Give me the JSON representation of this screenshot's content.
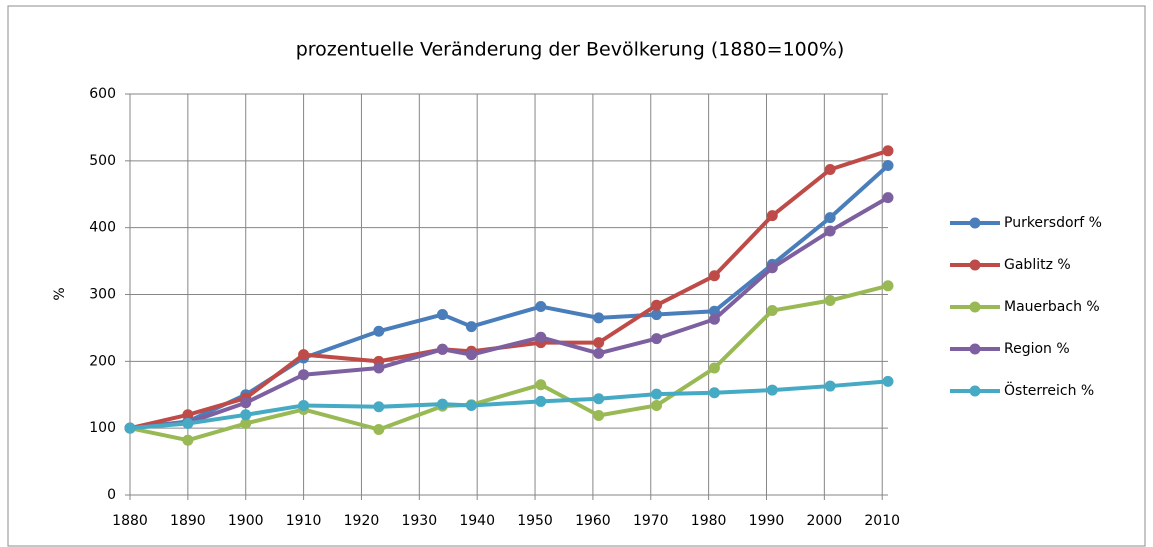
{
  "chart_data": {
    "type": "line",
    "title": "prozentuelle Veränderung der Bevölkerung (1880=100%)",
    "y_label": "%",
    "x": [
      1880,
      1890,
      1900,
      1910,
      1923,
      1934,
      1939,
      1951,
      1961,
      1971,
      1981,
      1991,
      2001,
      2011
    ],
    "series": [
      {
        "name": "Purkersdorf %",
        "color": "#4a7ebb",
        "values": [
          100,
          110,
          150,
          205,
          245,
          270,
          252,
          282,
          265,
          270,
          275,
          345,
          415,
          493
        ]
      },
      {
        "name": "Gablitz %",
        "color": "#be4b48",
        "values": [
          100,
          120,
          145,
          210,
          200,
          218,
          215,
          228,
          228,
          284,
          328,
          418,
          487,
          515
        ]
      },
      {
        "name": "Mauerbach %",
        "color": "#98b954",
        "values": [
          100,
          82,
          107,
          128,
          98,
          133,
          135,
          165,
          119,
          134,
          190,
          276,
          291,
          313
        ]
      },
      {
        "name": "Region %",
        "color": "#7d60a0",
        "values": [
          100,
          108,
          138,
          180,
          190,
          218,
          210,
          236,
          212,
          234,
          263,
          340,
          395,
          445
        ]
      },
      {
        "name": "Österreich %",
        "color": "#46aac5",
        "values": [
          100,
          107,
          120,
          134,
          132,
          136,
          134,
          140,
          144,
          151,
          153,
          157,
          163,
          170
        ]
      }
    ],
    "xlim": [
      1880,
      2011
    ],
    "xticks": [
      1880,
      1890,
      1900,
      1910,
      1920,
      1930,
      1940,
      1950,
      1960,
      1970,
      1980,
      1990,
      2000,
      2010
    ],
    "ylim": [
      0,
      600
    ],
    "yticks": [
      0,
      100,
      200,
      300,
      400,
      500,
      600
    ],
    "grid": true,
    "legend": "right"
  }
}
